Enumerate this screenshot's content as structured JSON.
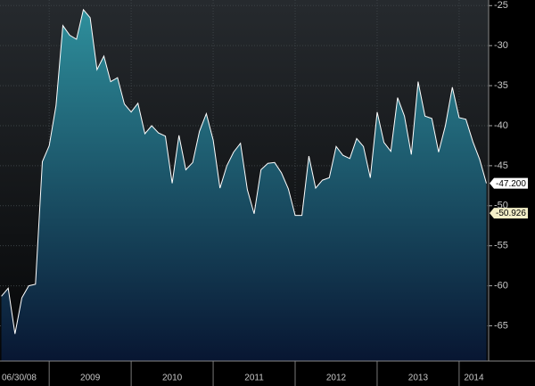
{
  "chart_data": {
    "type": "area",
    "color": "#ffffff",
    "fill_top": "#2e8f9c",
    "fill_bottom": "#081632",
    "grid": true,
    "xlim": [
      2008.4,
      2014.36
    ],
    "ylim": [
      -69.4,
      -24.3
    ],
    "yticks": [
      -25,
      -30,
      -35,
      -40,
      -45,
      -50,
      -55,
      -60,
      -65
    ],
    "xticks": [
      {
        "value": 2008.42,
        "label": "06/30/08"
      },
      {
        "value": 2009.5,
        "label": "2009"
      },
      {
        "value": 2010.5,
        "label": "2010"
      },
      {
        "value": 2011.5,
        "label": "2011"
      },
      {
        "value": 2012.5,
        "label": "2012"
      },
      {
        "value": 2013.5,
        "label": "2013"
      },
      {
        "value": 2014.18,
        "label": "2014"
      }
    ],
    "xseparators": [
      2009,
      2010,
      2011,
      2012,
      2013,
      2014
    ],
    "x": [
      2008.417,
      2008.5,
      2008.583,
      2008.667,
      2008.75,
      2008.833,
      2008.917,
      2009,
      2009.083,
      2009.167,
      2009.25,
      2009.333,
      2009.417,
      2009.5,
      2009.583,
      2009.667,
      2009.75,
      2009.833,
      2009.917,
      2010,
      2010.083,
      2010.167,
      2010.25,
      2010.333,
      2010.417,
      2010.5,
      2010.583,
      2010.667,
      2010.75,
      2010.833,
      2010.917,
      2011,
      2011.083,
      2011.167,
      2011.25,
      2011.333,
      2011.417,
      2011.5,
      2011.583,
      2011.667,
      2011.75,
      2011.833,
      2011.917,
      2012,
      2012.083,
      2012.167,
      2012.25,
      2012.333,
      2012.417,
      2012.5,
      2012.583,
      2012.667,
      2012.75,
      2012.833,
      2012.917,
      2013,
      2013.083,
      2013.167,
      2013.25,
      2013.333,
      2013.417,
      2013.5,
      2013.583,
      2013.667,
      2013.75,
      2013.833,
      2013.917,
      2014,
      2014.083,
      2014.167,
      2014.25,
      2014.333
    ],
    "values": [
      -61.3,
      -60.3,
      -66,
      -61.5,
      -60,
      -59.8,
      -44.5,
      -42.5,
      -37.5,
      -27.5,
      -28.7,
      -29.2,
      -25.5,
      -26.5,
      -33,
      -31.3,
      -34.5,
      -34,
      -37.3,
      -38.3,
      -37.2,
      -41,
      -40,
      -40.9,
      -41.3,
      -47.2,
      -41.2,
      -45.5,
      -44.6,
      -40.7,
      -38.5,
      -41.8,
      -47.8,
      -45,
      -43.3,
      -42.2,
      -48,
      -51,
      -45.5,
      -44.7,
      -44.6,
      -45.9,
      -47.9,
      -51.2,
      -51.2,
      -43.8,
      -47.8,
      -46.8,
      -46.5,
      -42.6,
      -43.7,
      -44.1,
      -41.6,
      -42.6,
      -46.5,
      -38.3,
      -42.1,
      -43.2,
      -36.5,
      -38.8,
      -43.6,
      -34.5,
      -38.8,
      -39.1,
      -43.3,
      -40,
      -35.2,
      -39,
      -39.2,
      -42,
      -44.2,
      -47.2
    ],
    "annotations": [
      {
        "value": -47.2,
        "label": "-47.200",
        "color": "#ffffff"
      },
      {
        "value": -50.926,
        "label": "-50.926",
        "color": "#f3efc8"
      }
    ]
  }
}
